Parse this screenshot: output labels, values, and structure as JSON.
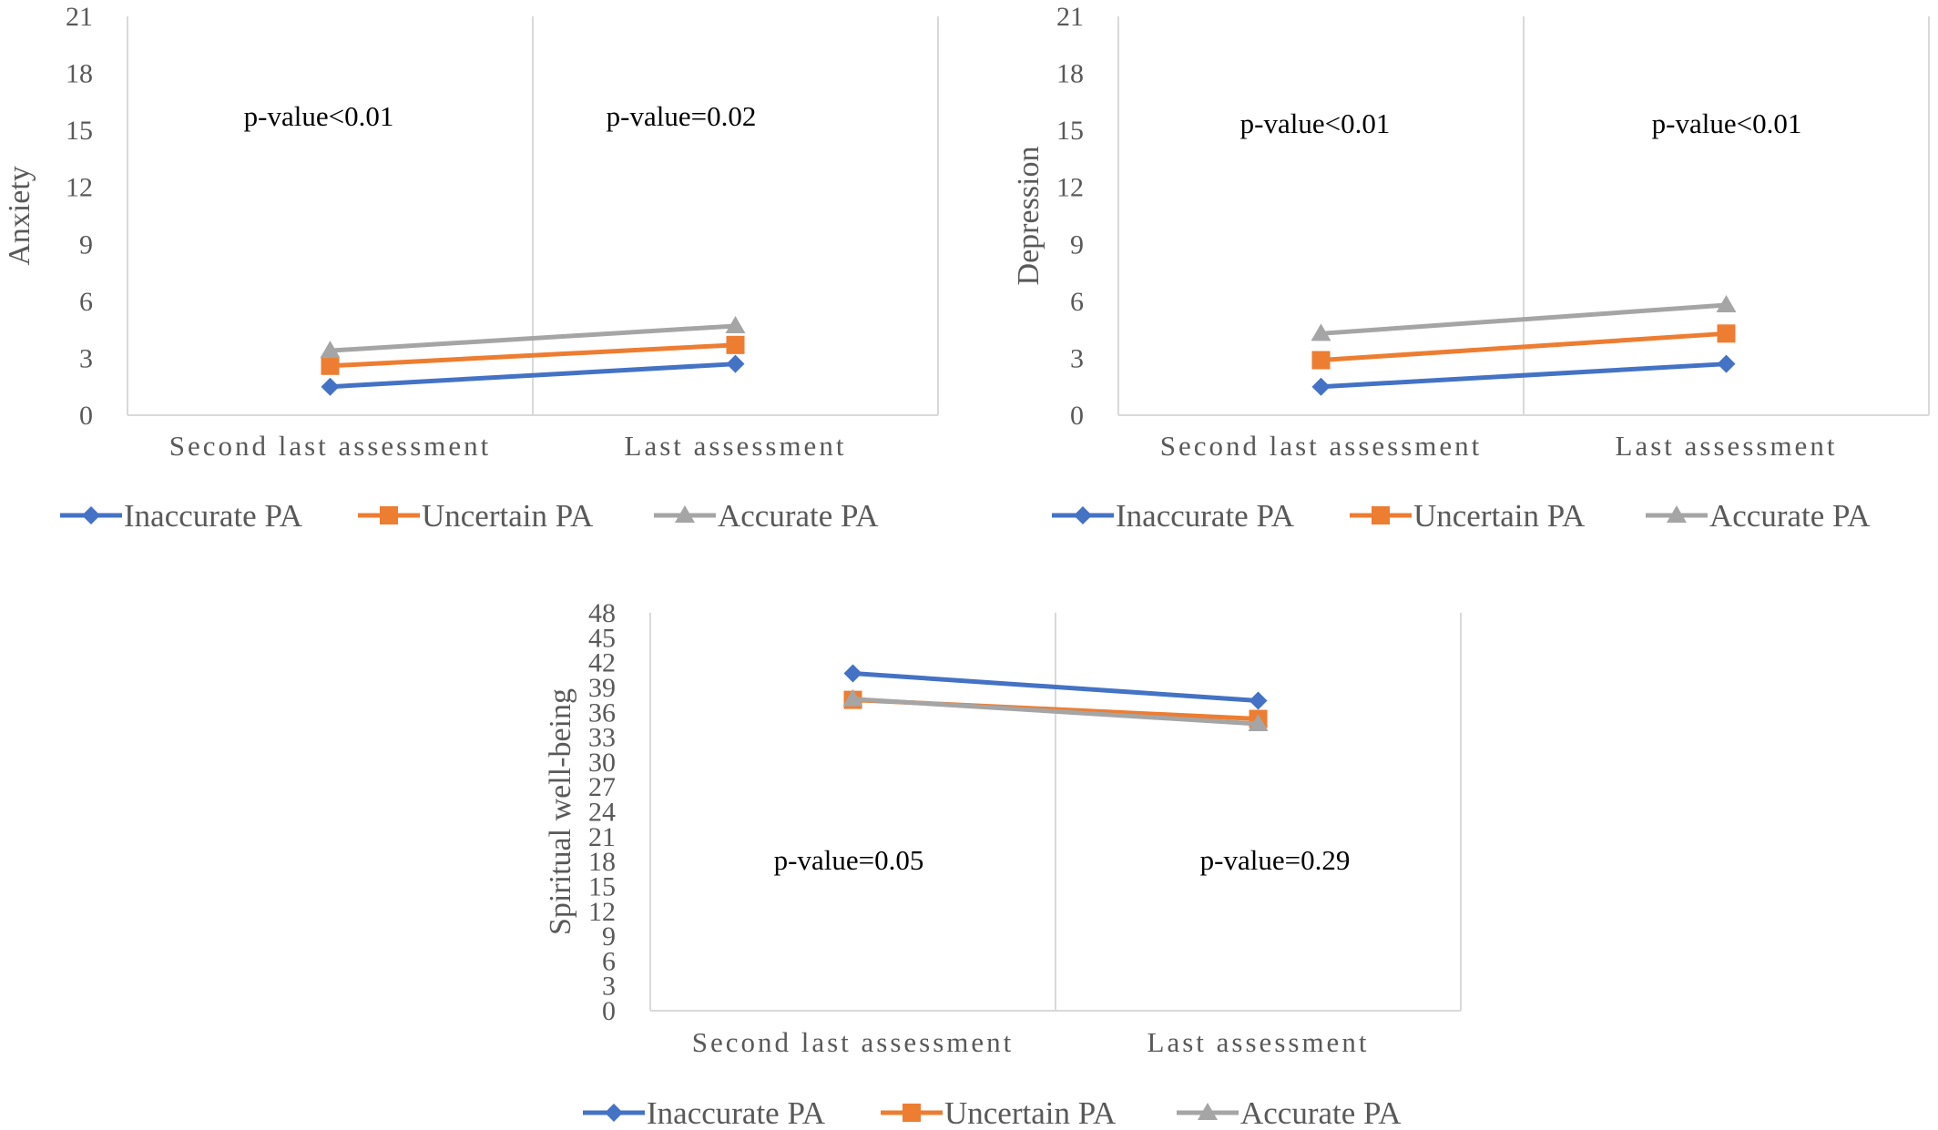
{
  "chart_data": [
    {
      "type": "line",
      "categories": [
        "Second  last  assessment",
        "Last  assessment"
      ],
      "ylabel": "Anxiety",
      "ylim": [
        0,
        21
      ],
      "yticks": [
        "0",
        "3",
        "6",
        "9",
        "12",
        "15",
        "18",
        "21"
      ],
      "series": [
        {
          "name": "Inaccurate PA",
          "values": [
            1.5,
            2.7
          ],
          "color": "#4472C4",
          "marker": "diamond"
        },
        {
          "name": "Uncertain PA",
          "values": [
            2.6,
            3.7
          ],
          "color": "#ED7D31",
          "marker": "square"
        },
        {
          "name": "Accurate PA",
          "values": [
            3.4,
            4.7
          ],
          "color": "#A5A5A5",
          "marker": "triangle"
        }
      ],
      "annotations": [
        "p-value<0.01",
        "p-value=0.02"
      ],
      "legend": "bottom"
    },
    {
      "type": "line",
      "categories": [
        "Second  last  assessment",
        "Last  assessment"
      ],
      "ylabel": "Depression",
      "ylim": [
        0,
        21
      ],
      "yticks": [
        "0",
        "3",
        "6",
        "9",
        "12",
        "15",
        "18",
        "21"
      ],
      "series": [
        {
          "name": "Inaccurate PA",
          "values": [
            1.5,
            2.7
          ],
          "color": "#4472C4",
          "marker": "diamond"
        },
        {
          "name": "Uncertain PA",
          "values": [
            2.9,
            4.3
          ],
          "color": "#ED7D31",
          "marker": "square"
        },
        {
          "name": "Accurate PA",
          "values": [
            4.3,
            5.8
          ],
          "color": "#A5A5A5",
          "marker": "triangle"
        }
      ],
      "annotations": [
        "p-value<0.01",
        "p-value<0.01"
      ],
      "legend": "bottom"
    },
    {
      "type": "line",
      "categories": [
        "Second  last  assessment",
        "Last  assessment"
      ],
      "ylabel": "Spiritual well-being",
      "ylim": [
        0,
        48
      ],
      "yticks": [
        "0",
        "3",
        "6",
        "9",
        "12",
        "15",
        "18",
        "21",
        "24",
        "27",
        "30",
        "33",
        "36",
        "39",
        "42",
        "45",
        "48"
      ],
      "series": [
        {
          "name": "Inaccurate PA",
          "values": [
            40.7,
            37.4
          ],
          "color": "#4472C4",
          "marker": "diamond"
        },
        {
          "name": "Uncertain PA",
          "values": [
            37.5,
            35.2
          ],
          "color": "#ED7D31",
          "marker": "square"
        },
        {
          "name": "Accurate PA",
          "values": [
            37.6,
            34.6
          ],
          "color": "#A5A5A5",
          "marker": "triangle"
        }
      ],
      "annotations": [
        "p-value=0.05",
        "p-value=0.29"
      ],
      "legend": "bottom"
    }
  ]
}
